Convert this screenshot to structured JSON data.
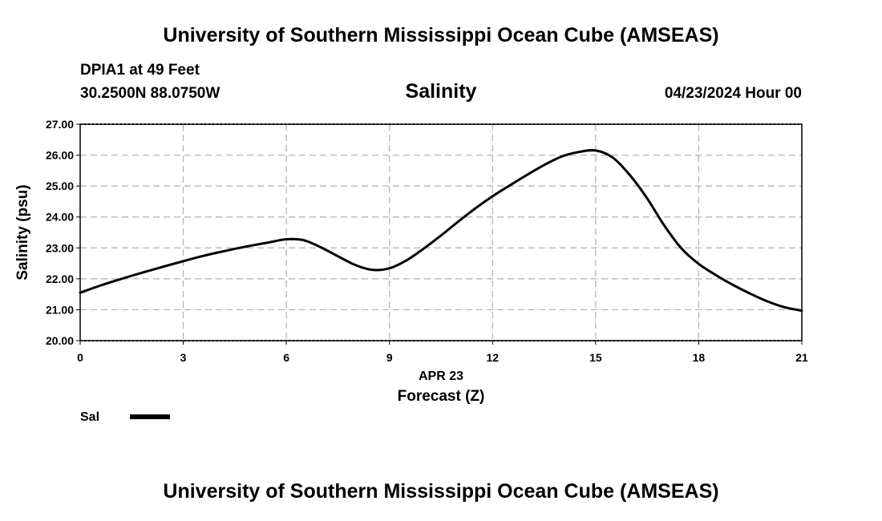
{
  "header": {
    "title_top": "University of Southern Mississippi Ocean Cube (AMSEAS)",
    "station": "DPIA1 at 49 Feet",
    "coordinates": "30.2500N  88.0750W",
    "variable": "Salinity",
    "datetime": "04/23/2024 Hour 00"
  },
  "footer": {
    "title_bottom": "University of Southern Mississippi Ocean Cube (AMSEAS)"
  },
  "colors": {
    "line": "#000000",
    "grid": "#b0b0b0",
    "border": "#000000"
  },
  "chart_data": {
    "type": "line",
    "title": "Salinity",
    "xlabel": "Forecast (Z)",
    "xlabel_date": "APR 23",
    "ylabel": "Salinity (psu)",
    "xlim": [
      0,
      21
    ],
    "ylim": [
      20,
      27
    ],
    "xticks": [
      0,
      3,
      6,
      9,
      12,
      15,
      18,
      21
    ],
    "xtick_labels": [
      "0",
      "3",
      "6",
      "9",
      "12",
      "15",
      "18",
      "21"
    ],
    "yticks": [
      20,
      21,
      22,
      23,
      24,
      25,
      26,
      27
    ],
    "ytick_labels": [
      "20.00",
      "21.00",
      "22.00",
      "23.00",
      "24.00",
      "25.00",
      "26.00",
      "27.00"
    ],
    "grid": true,
    "legend_position": "bottom-left",
    "series": [
      {
        "name": "Sal",
        "x": [
          0,
          0.5,
          1,
          1.5,
          2,
          2.5,
          3,
          3.5,
          4,
          4.5,
          5,
          5.5,
          6,
          6.5,
          7,
          7.5,
          8,
          8.5,
          9,
          9.5,
          10,
          10.5,
          11,
          11.5,
          12,
          12.5,
          13,
          13.5,
          14,
          14.5,
          15,
          15.5,
          16,
          16.5,
          17,
          17.5,
          18,
          18.5,
          19,
          19.5,
          20,
          20.5,
          21
        ],
        "values": [
          21.55,
          21.75,
          21.93,
          22.1,
          22.26,
          22.42,
          22.57,
          22.72,
          22.85,
          22.97,
          23.08,
          23.18,
          23.28,
          23.25,
          23.02,
          22.73,
          22.45,
          22.29,
          22.34,
          22.6,
          22.98,
          23.4,
          23.85,
          24.28,
          24.67,
          25.02,
          25.36,
          25.68,
          25.95,
          26.1,
          26.15,
          25.92,
          25.35,
          24.6,
          23.72,
          22.98,
          22.48,
          22.12,
          21.8,
          21.52,
          21.27,
          21.08,
          20.97
        ]
      }
    ]
  }
}
